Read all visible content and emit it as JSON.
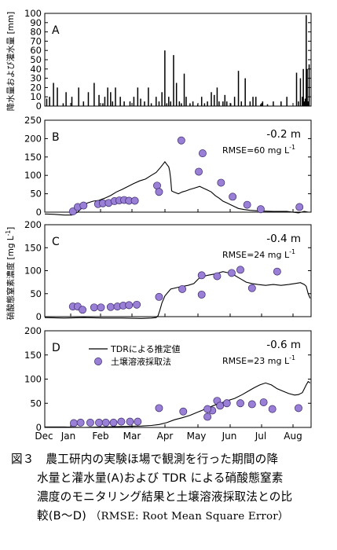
{
  "chart_data": [
    {
      "id": "A",
      "type": "bar",
      "panel_label": "A",
      "ylabel": "降水量および灌水量 [mm]",
      "yticks": [
        "0",
        "10",
        "20",
        "30",
        "40",
        "50",
        "60",
        "70",
        "80",
        "90",
        "100"
      ],
      "ylim": [
        0,
        100
      ],
      "xlim": [
        0,
        275
      ],
      "x": [
        2,
        5,
        9,
        13,
        19,
        22,
        28,
        35,
        40,
        45,
        51,
        56,
        60,
        62,
        65,
        68,
        70,
        73,
        78,
        82,
        88,
        92,
        96,
        99,
        103,
        107,
        110,
        115,
        118,
        121,
        124,
        126,
        128,
        130,
        133,
        136,
        139,
        141,
        144,
        146,
        150,
        153,
        158,
        162,
        165,
        168,
        172,
        175,
        178,
        180,
        184,
        186,
        188,
        192,
        196,
        200,
        203,
        207,
        212,
        215,
        218,
        223,
        225,
        230,
        236,
        244,
        250,
        260,
        262,
        264,
        266,
        267,
        268,
        269,
        270,
        271,
        272,
        273
      ],
      "values": [
        8,
        10,
        25,
        20,
        3,
        15,
        10,
        20,
        5,
        15,
        25,
        12,
        3,
        10,
        20,
        15,
        5,
        20,
        10,
        5,
        5,
        10,
        20,
        8,
        5,
        20,
        3,
        10,
        5,
        15,
        60,
        3,
        10,
        5,
        55,
        25,
        5,
        3,
        35,
        10,
        3,
        5,
        2,
        10,
        3,
        5,
        15,
        12,
        20,
        5,
        5,
        12,
        5,
        3,
        10,
        38,
        5,
        30,
        5,
        10,
        10,
        2,
        5,
        2,
        5,
        5,
        10,
        36,
        5,
        30,
        10,
        40,
        5,
        8,
        98,
        40,
        5,
        45
      ],
      "grid": false
    },
    {
      "id": "B",
      "type": "line+scatter",
      "panel_label": "B",
      "depth": "-0.2 m",
      "rmse_text": "RMSE=60 mg L",
      "rmse_sup": "-1",
      "yticks": [
        "0",
        "50",
        "100",
        "150",
        "200",
        "250"
      ],
      "ylim": [
        0,
        250
      ],
      "xlim": [
        0,
        275
      ],
      "line": [
        [
          0,
          -5
        ],
        [
          10,
          -6
        ],
        [
          20,
          -8
        ],
        [
          28,
          -8
        ],
        [
          31,
          -5
        ],
        [
          34,
          0
        ],
        [
          37,
          8
        ],
        [
          40,
          15
        ],
        [
          44,
          25
        ],
        [
          50,
          30
        ],
        [
          56,
          32
        ],
        [
          62,
          38
        ],
        [
          68,
          45
        ],
        [
          74,
          55
        ],
        [
          80,
          62
        ],
        [
          86,
          70
        ],
        [
          92,
          78
        ],
        [
          98,
          85
        ],
        [
          104,
          90
        ],
        [
          110,
          100
        ],
        [
          115,
          108
        ],
        [
          119,
          120
        ],
        [
          122,
          130
        ],
        [
          124,
          137
        ],
        [
          126,
          130
        ],
        [
          128,
          123
        ],
        [
          129,
          112
        ],
        [
          130,
          90
        ],
        [
          131,
          58
        ],
        [
          133,
          55
        ],
        [
          138,
          50
        ],
        [
          142,
          55
        ],
        [
          146,
          58
        ],
        [
          150,
          62
        ],
        [
          154,
          65
        ],
        [
          160,
          70
        ],
        [
          164,
          65
        ],
        [
          168,
          60
        ],
        [
          172,
          55
        ],
        [
          176,
          45
        ],
        [
          180,
          38
        ],
        [
          184,
          30
        ],
        [
          188,
          25
        ],
        [
          192,
          20
        ],
        [
          196,
          15
        ],
        [
          200,
          10
        ],
        [
          206,
          7
        ],
        [
          212,
          5
        ],
        [
          222,
          3
        ],
        [
          236,
          2
        ],
        [
          250,
          2
        ],
        [
          262,
          -2
        ],
        [
          268,
          2
        ],
        [
          272,
          0
        ]
      ],
      "points": [
        [
          29,
          2
        ],
        [
          34,
          14
        ],
        [
          40,
          18
        ],
        [
          55,
          22
        ],
        [
          60,
          24
        ],
        [
          66,
          25
        ],
        [
          72,
          30
        ],
        [
          77,
          32
        ],
        [
          82,
          33
        ],
        [
          87,
          31
        ],
        [
          93,
          31
        ],
        [
          116,
          72
        ],
        [
          118,
          55
        ],
        [
          141,
          195
        ],
        [
          159,
          110
        ],
        [
          163,
          160
        ],
        [
          182,
          80
        ],
        [
          194,
          42
        ],
        [
          209,
          20
        ],
        [
          223,
          8
        ],
        [
          263,
          14
        ]
      ]
    },
    {
      "id": "C",
      "type": "line+scatter",
      "panel_label": "C",
      "depth": "-0.4 m",
      "rmse_text": "RMSE=24 mg L",
      "rmse_sup": "-1",
      "ylabel": "硝酸態窒素濃度 [mg L",
      "ylabel_sup": "-1",
      "ylabel_end": "]",
      "yticks": [
        "0",
        "50",
        "100",
        "150",
        "200"
      ],
      "ylim": [
        0,
        200
      ],
      "xlim": [
        0,
        275
      ],
      "line": [
        [
          0,
          -2
        ],
        [
          20,
          -3
        ],
        [
          40,
          -2
        ],
        [
          60,
          -3
        ],
        [
          80,
          -3
        ],
        [
          100,
          -4
        ],
        [
          110,
          -3
        ],
        [
          115,
          -2
        ],
        [
          117,
          2
        ],
        [
          119,
          15
        ],
        [
          121,
          30
        ],
        [
          124,
          45
        ],
        [
          130,
          60
        ],
        [
          140,
          65
        ],
        [
          148,
          68
        ],
        [
          154,
          72
        ],
        [
          160,
          85
        ],
        [
          168,
          90
        ],
        [
          176,
          93
        ],
        [
          184,
          98
        ],
        [
          190,
          95
        ],
        [
          196,
          90
        ],
        [
          200,
          85
        ],
        [
          204,
          80
        ],
        [
          208,
          75
        ],
        [
          214,
          72
        ],
        [
          220,
          70
        ],
        [
          228,
          68
        ],
        [
          236,
          70
        ],
        [
          244,
          68
        ],
        [
          252,
          70
        ],
        [
          258,
          72
        ],
        [
          264,
          74
        ],
        [
          268,
          70
        ],
        [
          270,
          66
        ],
        [
          272,
          50
        ],
        [
          274,
          40
        ]
      ],
      "points": [
        [
          29,
          22
        ],
        [
          34,
          22
        ],
        [
          39,
          15
        ],
        [
          51,
          20
        ],
        [
          58,
          20
        ],
        [
          68,
          21
        ],
        [
          75,
          22
        ],
        [
          81,
          24
        ],
        [
          87,
          25
        ],
        [
          95,
          26
        ],
        [
          118,
          43
        ],
        [
          142,
          60
        ],
        [
          162,
          90
        ],
        [
          178,
          88
        ],
        [
          193,
          95
        ],
        [
          202,
          102
        ],
        [
          214,
          62
        ],
        [
          240,
          98
        ],
        [
          162,
          48
        ]
      ]
    },
    {
      "id": "D",
      "type": "line+scatter",
      "panel_label": "D",
      "depth": "-0.6 m",
      "rmse_text": "RMSE=23 mg L",
      "rmse_sup": "-1",
      "legend": [
        "TDRによる推定値",
        "土壌溶液採取法"
      ],
      "xticks": [
        "Dec",
        "Jan",
        "Feb",
        "Mar",
        "Apr",
        "May",
        "Jun",
        "Jul",
        "Aug"
      ],
      "yticks": [
        "0",
        "50",
        "100",
        "150",
        "200"
      ],
      "ylim": [
        0,
        200
      ],
      "xlim": [
        0,
        275
      ],
      "line": [
        [
          0,
          1
        ],
        [
          20,
          1
        ],
        [
          40,
          0
        ],
        [
          60,
          1
        ],
        [
          80,
          2
        ],
        [
          100,
          3
        ],
        [
          110,
          4
        ],
        [
          118,
          6
        ],
        [
          126,
          10
        ],
        [
          134,
          16
        ],
        [
          142,
          20
        ],
        [
          150,
          25
        ],
        [
          156,
          30
        ],
        [
          162,
          35
        ],
        [
          168,
          40
        ],
        [
          174,
          45
        ],
        [
          178,
          48
        ],
        [
          184,
          52
        ],
        [
          188,
          55
        ],
        [
          196,
          60
        ],
        [
          204,
          68
        ],
        [
          210,
          75
        ],
        [
          216,
          82
        ],
        [
          222,
          88
        ],
        [
          228,
          92
        ],
        [
          234,
          88
        ],
        [
          240,
          80
        ],
        [
          246,
          75
        ],
        [
          252,
          70
        ],
        [
          258,
          67
        ],
        [
          262,
          68
        ],
        [
          266,
          72
        ],
        [
          268,
          80
        ],
        [
          270,
          88
        ],
        [
          272,
          95
        ],
        [
          274,
          92
        ]
      ],
      "points": [
        [
          30,
          9
        ],
        [
          37,
          10
        ],
        [
          47,
          10
        ],
        [
          56,
          10
        ],
        [
          63,
          10
        ],
        [
          71,
          10
        ],
        [
          79,
          12
        ],
        [
          88,
          12
        ],
        [
          96,
          12
        ],
        [
          118,
          40
        ],
        [
          143,
          33
        ],
        [
          168,
          22
        ],
        [
          173,
          35
        ],
        [
          178,
          55
        ],
        [
          181,
          45
        ],
        [
          188,
          50
        ],
        [
          202,
          50
        ],
        [
          214,
          48
        ],
        [
          226,
          52
        ],
        [
          235,
          38
        ],
        [
          262,
          40
        ],
        [
          168,
          38
        ]
      ]
    }
  ],
  "caption": {
    "line1": "図３　農工研内の実験ほ場で観測を行った期間の降",
    "line2": "水量と灌水量(A)および TDR による硝酸態窒素",
    "line3": "濃度のモニタリング結果と土壌溶液採取法との比",
    "line4_a": "較(B～D)",
    "line4_b": "（RMSE: Root Mean Square Error）"
  },
  "colors": {
    "point_fill": "#9a7fd6",
    "point_stroke": "#3a2a6a",
    "line": "#000000",
    "bar": "#000000"
  }
}
